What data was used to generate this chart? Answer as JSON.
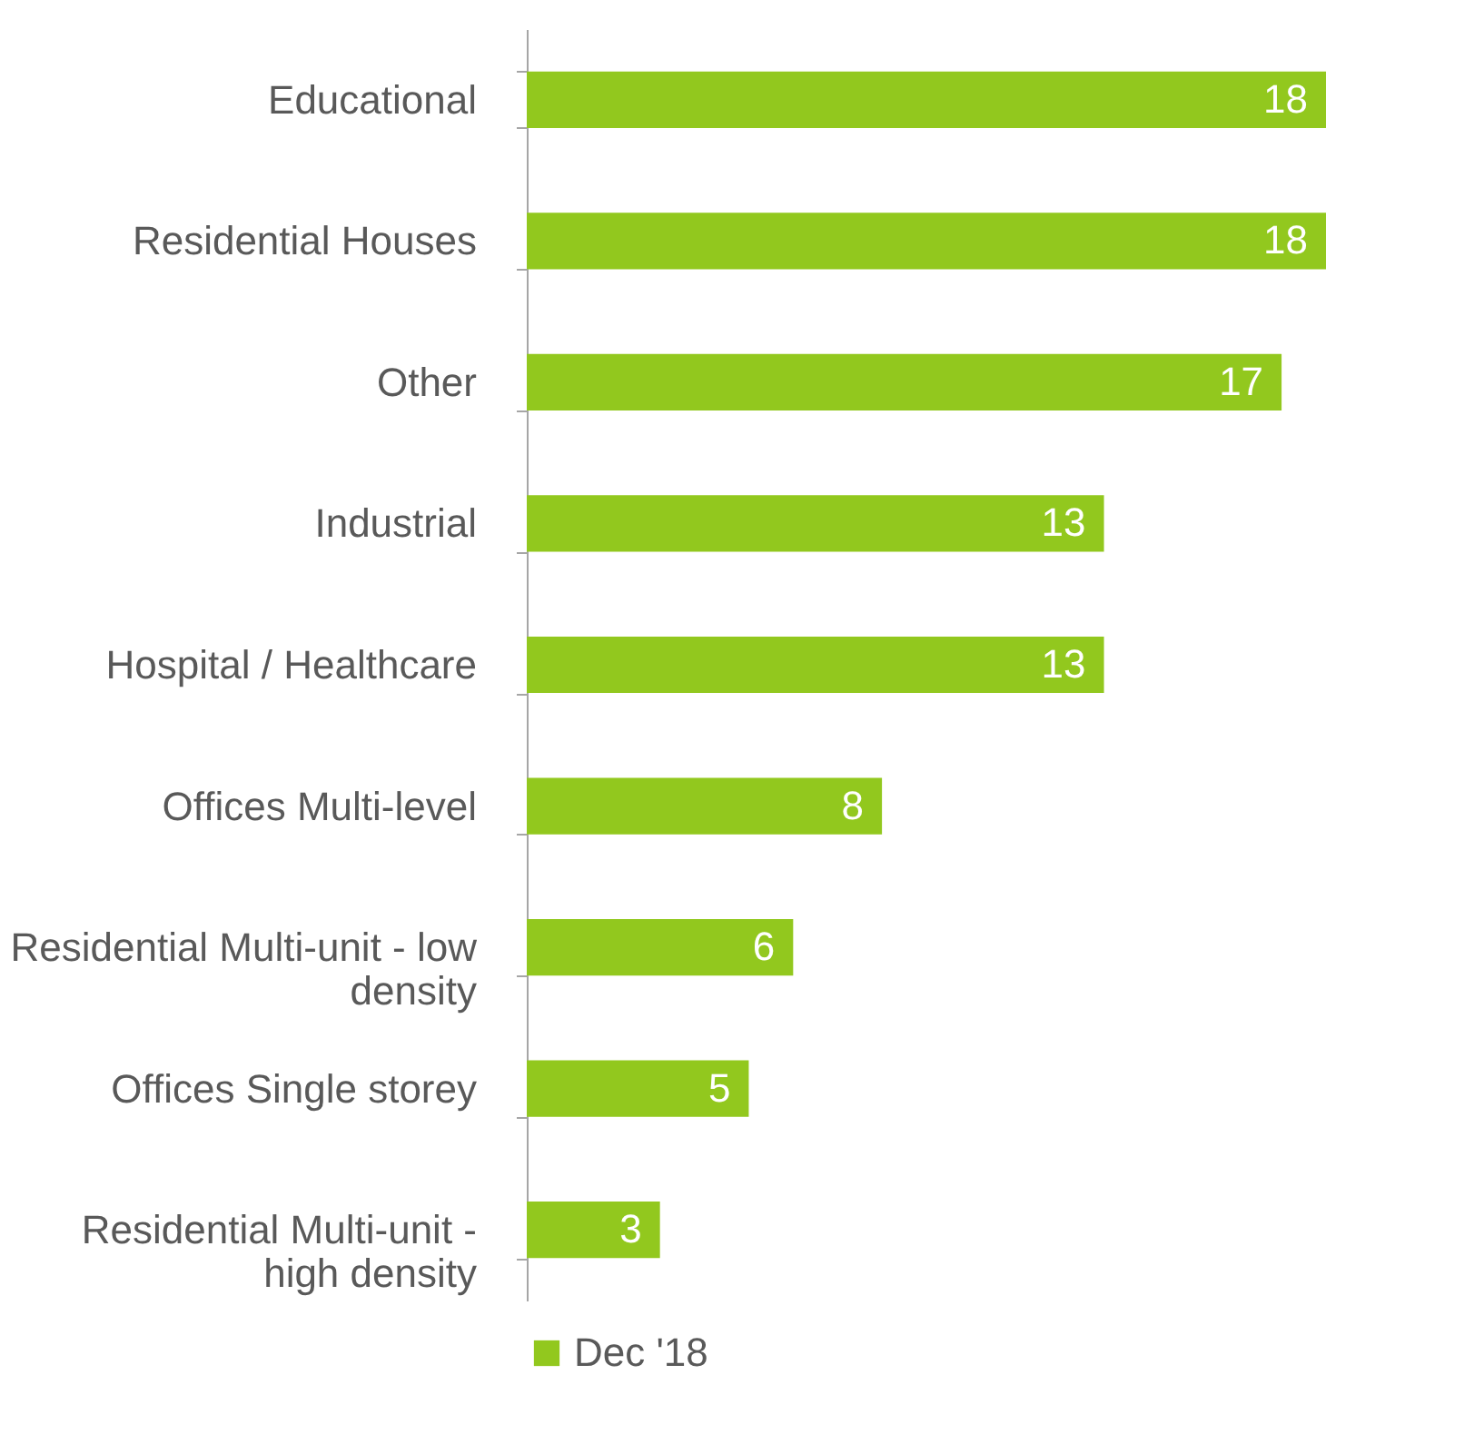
{
  "chart_data": {
    "type": "bar",
    "orientation": "horizontal",
    "categories": [
      "Educational",
      "Residential Houses",
      "Other",
      "Industrial",
      "Hospital / Healthcare",
      "Offices Multi-level",
      "Residential Multi-unit - low density",
      "Offices Single storey",
      "Residential Multi-unit - high density"
    ],
    "series": [
      {
        "name": "Dec '18",
        "color": "#92c81e",
        "values": [
          18,
          18,
          17,
          13,
          13,
          8,
          6,
          5,
          3
        ]
      }
    ],
    "data_labels": true,
    "legend": "bottom",
    "grid": false
  }
}
